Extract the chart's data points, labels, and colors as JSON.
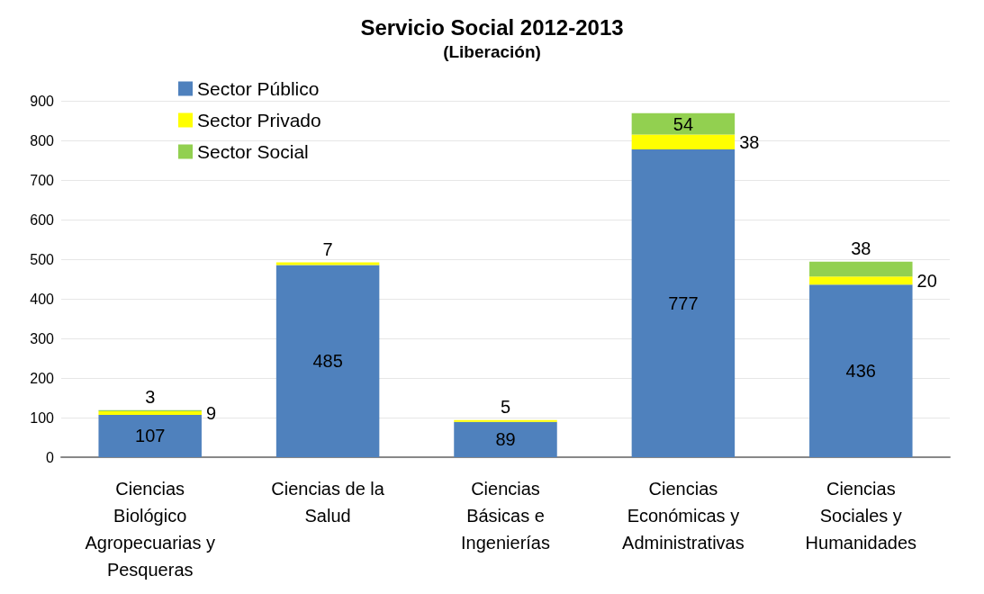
{
  "chart_data": {
    "type": "bar",
    "title": "Servicio Social 2012-2013",
    "subtitle": "(Liberación)",
    "stacked": true,
    "categories": [
      "Ciencias Biológico Agropecuarias y Pesqueras",
      "Ciencias de la Salud",
      "Ciencias Básicas e Ingenierías",
      "Ciencias Económicas y Administrativas",
      "Ciencias Sociales y Humanidades"
    ],
    "series": [
      {
        "name": "Sector Público",
        "color": "#4f81bd",
        "values": [
          107,
          485,
          89,
          777,
          436
        ]
      },
      {
        "name": "Sector Privado",
        "color": "#ffff00",
        "values": [
          9,
          7,
          5,
          38,
          20
        ]
      },
      {
        "name": "Sector Social",
        "color": "#92d050",
        "values": [
          3,
          null,
          null,
          54,
          38
        ]
      }
    ],
    "ylim": [
      0,
      900
    ],
    "yticks": [
      0,
      100,
      200,
      300,
      400,
      500,
      600,
      700,
      800,
      900
    ],
    "grid": "y",
    "legend": "top left",
    "data_labels": true
  }
}
